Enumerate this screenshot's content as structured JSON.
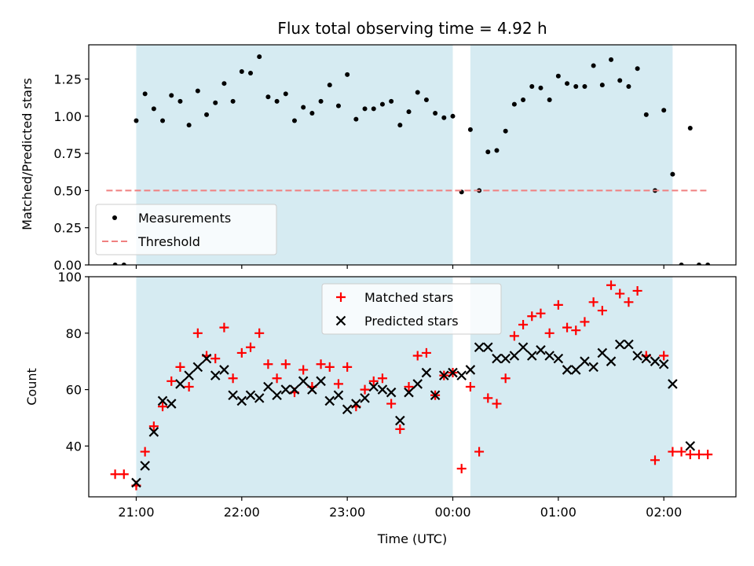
{
  "chart_data": [
    {
      "type": "scatter",
      "title": "Flux total observing time = 4.92 h",
      "xlabel": "",
      "ylabel": "Matched/Predicted stars",
      "xlim": [
        "20:33",
        "02:41"
      ],
      "ylim": [
        0,
        1.48
      ],
      "y_ticks": [
        "0.00",
        "0.25",
        "0.50",
        "0.75",
        "1.00",
        "1.25"
      ],
      "shaded_intervals": [
        [
          "21:00",
          "00:00"
        ],
        [
          "00:10",
          "02:05"
        ]
      ],
      "legend_position": "lower-left",
      "series": [
        {
          "name": "Measurements",
          "marker": "dot",
          "color": "#000000",
          "points": [
            [
              "20:48",
              0
            ],
            [
              "20:53",
              0
            ],
            [
              "21:00",
              0.97
            ],
            [
              "21:05",
              1.15
            ],
            [
              "21:10",
              1.05
            ],
            [
              "21:15",
              0.97
            ],
            [
              "21:20",
              1.14
            ],
            [
              "21:25",
              1.1
            ],
            [
              "21:30",
              0.94
            ],
            [
              "21:35",
              1.17
            ],
            [
              "21:40",
              1.01
            ],
            [
              "21:45",
              1.09
            ],
            [
              "21:50",
              1.22
            ],
            [
              "21:55",
              1.1
            ],
            [
              "22:00",
              1.3
            ],
            [
              "22:05",
              1.29
            ],
            [
              "22:10",
              1.4
            ],
            [
              "22:15",
              1.13
            ],
            [
              "22:20",
              1.1
            ],
            [
              "22:25",
              1.15
            ],
            [
              "22:30",
              0.97
            ],
            [
              "22:35",
              1.06
            ],
            [
              "22:40",
              1.02
            ],
            [
              "22:45",
              1.1
            ],
            [
              "22:50",
              1.21
            ],
            [
              "22:55",
              1.07
            ],
            [
              "23:00",
              1.28
            ],
            [
              "23:05",
              0.98
            ],
            [
              "23:10",
              1.05
            ],
            [
              "23:15",
              1.05
            ],
            [
              "23:20",
              1.08
            ],
            [
              "23:25",
              1.1
            ],
            [
              "23:30",
              0.94
            ],
            [
              "23:35",
              1.03
            ],
            [
              "23:40",
              1.16
            ],
            [
              "23:45",
              1.11
            ],
            [
              "23:50",
              1.02
            ],
            [
              "23:55",
              0.99
            ],
            [
              "00:00",
              1.0
            ],
            [
              "00:05",
              0.49
            ],
            [
              "00:10",
              0.91
            ],
            [
              "00:15",
              0.5
            ],
            [
              "00:20",
              0.76
            ],
            [
              "00:25",
              0.77
            ],
            [
              "00:30",
              0.9
            ],
            [
              "00:35",
              1.08
            ],
            [
              "00:40",
              1.11
            ],
            [
              "00:45",
              1.2
            ],
            [
              "00:50",
              1.19
            ],
            [
              "00:55",
              1.11
            ],
            [
              "01:00",
              1.27
            ],
            [
              "01:05",
              1.22
            ],
            [
              "01:10",
              1.2
            ],
            [
              "01:15",
              1.2
            ],
            [
              "01:20",
              1.34
            ],
            [
              "01:25",
              1.21
            ],
            [
              "01:30",
              1.38
            ],
            [
              "01:35",
              1.24
            ],
            [
              "01:40",
              1.2
            ],
            [
              "01:45",
              1.32
            ],
            [
              "01:50",
              1.01
            ],
            [
              "01:55",
              0.5
            ],
            [
              "02:00",
              1.04
            ],
            [
              "02:05",
              0.61
            ],
            [
              "02:10",
              0
            ],
            [
              "02:15",
              0.92
            ],
            [
              "02:20",
              0
            ],
            [
              "02:25",
              0
            ]
          ]
        },
        {
          "name": "Threshold",
          "style": "dashed-line",
          "color": "#f08080",
          "points": [
            [
              "20:43",
              0.5
            ],
            [
              "02:25",
              0.5
            ]
          ]
        }
      ]
    },
    {
      "type": "scatter",
      "title": "",
      "xlabel": "Time (UTC)",
      "ylabel": "Count",
      "xlim": [
        "20:33",
        "02:41"
      ],
      "ylim": [
        22,
        100
      ],
      "y_ticks": [
        "40",
        "60",
        "80",
        "100"
      ],
      "x_ticks": [
        "21:00",
        "22:00",
        "23:00",
        "00:00",
        "01:00",
        "02:00"
      ],
      "shaded_intervals": [
        [
          "21:00",
          "00:00"
        ],
        [
          "00:10",
          "02:05"
        ]
      ],
      "legend_position": "upper-center",
      "series": [
        {
          "name": "Matched stars",
          "marker": "plus",
          "color": "#ff0000",
          "points": [
            [
              "20:48",
              30
            ],
            [
              "20:53",
              30
            ],
            [
              "21:00",
              26
            ],
            [
              "21:05",
              38
            ],
            [
              "21:10",
              47
            ],
            [
              "21:15",
              54
            ],
            [
              "21:20",
              63
            ],
            [
              "21:25",
              68
            ],
            [
              "21:30",
              61
            ],
            [
              "21:35",
              80
            ],
            [
              "21:40",
              72
            ],
            [
              "21:45",
              71
            ],
            [
              "21:50",
              82
            ],
            [
              "21:55",
              64
            ],
            [
              "22:00",
              73
            ],
            [
              "22:05",
              75
            ],
            [
              "22:10",
              80
            ],
            [
              "22:15",
              69
            ],
            [
              "22:20",
              64
            ],
            [
              "22:25",
              69
            ],
            [
              "22:30",
              59
            ],
            [
              "22:35",
              67
            ],
            [
              "22:40",
              61
            ],
            [
              "22:45",
              69
            ],
            [
              "22:50",
              68
            ],
            [
              "22:55",
              62
            ],
            [
              "23:00",
              68
            ],
            [
              "23:05",
              54
            ],
            [
              "23:10",
              60
            ],
            [
              "23:15",
              63
            ],
            [
              "23:20",
              64
            ],
            [
              "23:25",
              55
            ],
            [
              "23:30",
              46
            ],
            [
              "23:35",
              61
            ],
            [
              "23:40",
              72
            ],
            [
              "23:45",
              73
            ],
            [
              "23:50",
              58
            ],
            [
              "23:55",
              65
            ],
            [
              "00:00",
              66
            ],
            [
              "00:05",
              32
            ],
            [
              "00:10",
              61
            ],
            [
              "00:15",
              38
            ],
            [
              "00:20",
              57
            ],
            [
              "00:25",
              55
            ],
            [
              "00:30",
              64
            ],
            [
              "00:35",
              79
            ],
            [
              "00:40",
              83
            ],
            [
              "00:45",
              86
            ],
            [
              "00:50",
              87
            ],
            [
              "00:55",
              80
            ],
            [
              "01:00",
              90
            ],
            [
              "01:05",
              82
            ],
            [
              "01:10",
              81
            ],
            [
              "01:15",
              84
            ],
            [
              "01:20",
              91
            ],
            [
              "01:25",
              88
            ],
            [
              "01:30",
              97
            ],
            [
              "01:35",
              94
            ],
            [
              "01:40",
              91
            ],
            [
              "01:45",
              95
            ],
            [
              "01:50",
              72
            ],
            [
              "01:55",
              35
            ],
            [
              "02:00",
              72
            ],
            [
              "02:05",
              38
            ],
            [
              "02:10",
              38
            ],
            [
              "02:15",
              37
            ],
            [
              "02:20",
              37
            ],
            [
              "02:25",
              37
            ]
          ]
        },
        {
          "name": "Predicted stars",
          "marker": "x",
          "color": "#000000",
          "points": [
            [
              "21:00",
              27
            ],
            [
              "21:05",
              33
            ],
            [
              "21:10",
              45
            ],
            [
              "21:15",
              56
            ],
            [
              "21:20",
              55
            ],
            [
              "21:25",
              62
            ],
            [
              "21:30",
              65
            ],
            [
              "21:35",
              68
            ],
            [
              "21:40",
              71
            ],
            [
              "21:45",
              65
            ],
            [
              "21:50",
              67
            ],
            [
              "21:55",
              58
            ],
            [
              "22:00",
              56
            ],
            [
              "22:05",
              58
            ],
            [
              "22:10",
              57
            ],
            [
              "22:15",
              61
            ],
            [
              "22:20",
              58
            ],
            [
              "22:25",
              60
            ],
            [
              "22:30",
              60
            ],
            [
              "22:35",
              63
            ],
            [
              "22:40",
              60
            ],
            [
              "22:45",
              63
            ],
            [
              "22:50",
              56
            ],
            [
              "22:55",
              58
            ],
            [
              "23:00",
              53
            ],
            [
              "23:05",
              55
            ],
            [
              "23:10",
              57
            ],
            [
              "23:15",
              61
            ],
            [
              "23:20",
              60
            ],
            [
              "23:25",
              59
            ],
            [
              "23:30",
              49
            ],
            [
              "23:35",
              59
            ],
            [
              "23:40",
              62
            ],
            [
              "23:45",
              66
            ],
            [
              "23:50",
              58
            ],
            [
              "23:55",
              65
            ],
            [
              "00:00",
              66
            ],
            [
              "00:05",
              65
            ],
            [
              "00:10",
              67
            ],
            [
              "00:15",
              75
            ],
            [
              "00:20",
              75
            ],
            [
              "00:25",
              71
            ],
            [
              "00:30",
              71
            ],
            [
              "00:35",
              72
            ],
            [
              "00:40",
              75
            ],
            [
              "00:45",
              72
            ],
            [
              "00:50",
              74
            ],
            [
              "00:55",
              72
            ],
            [
              "01:00",
              71
            ],
            [
              "01:05",
              67
            ],
            [
              "01:10",
              67
            ],
            [
              "01:15",
              70
            ],
            [
              "01:20",
              68
            ],
            [
              "01:25",
              73
            ],
            [
              "01:30",
              70
            ],
            [
              "01:35",
              76
            ],
            [
              "01:40",
              76
            ],
            [
              "01:45",
              72
            ],
            [
              "01:50",
              71
            ],
            [
              "01:55",
              70
            ],
            [
              "02:00",
              69
            ],
            [
              "02:05",
              62
            ],
            [
              "02:15",
              40
            ]
          ]
        }
      ]
    }
  ]
}
